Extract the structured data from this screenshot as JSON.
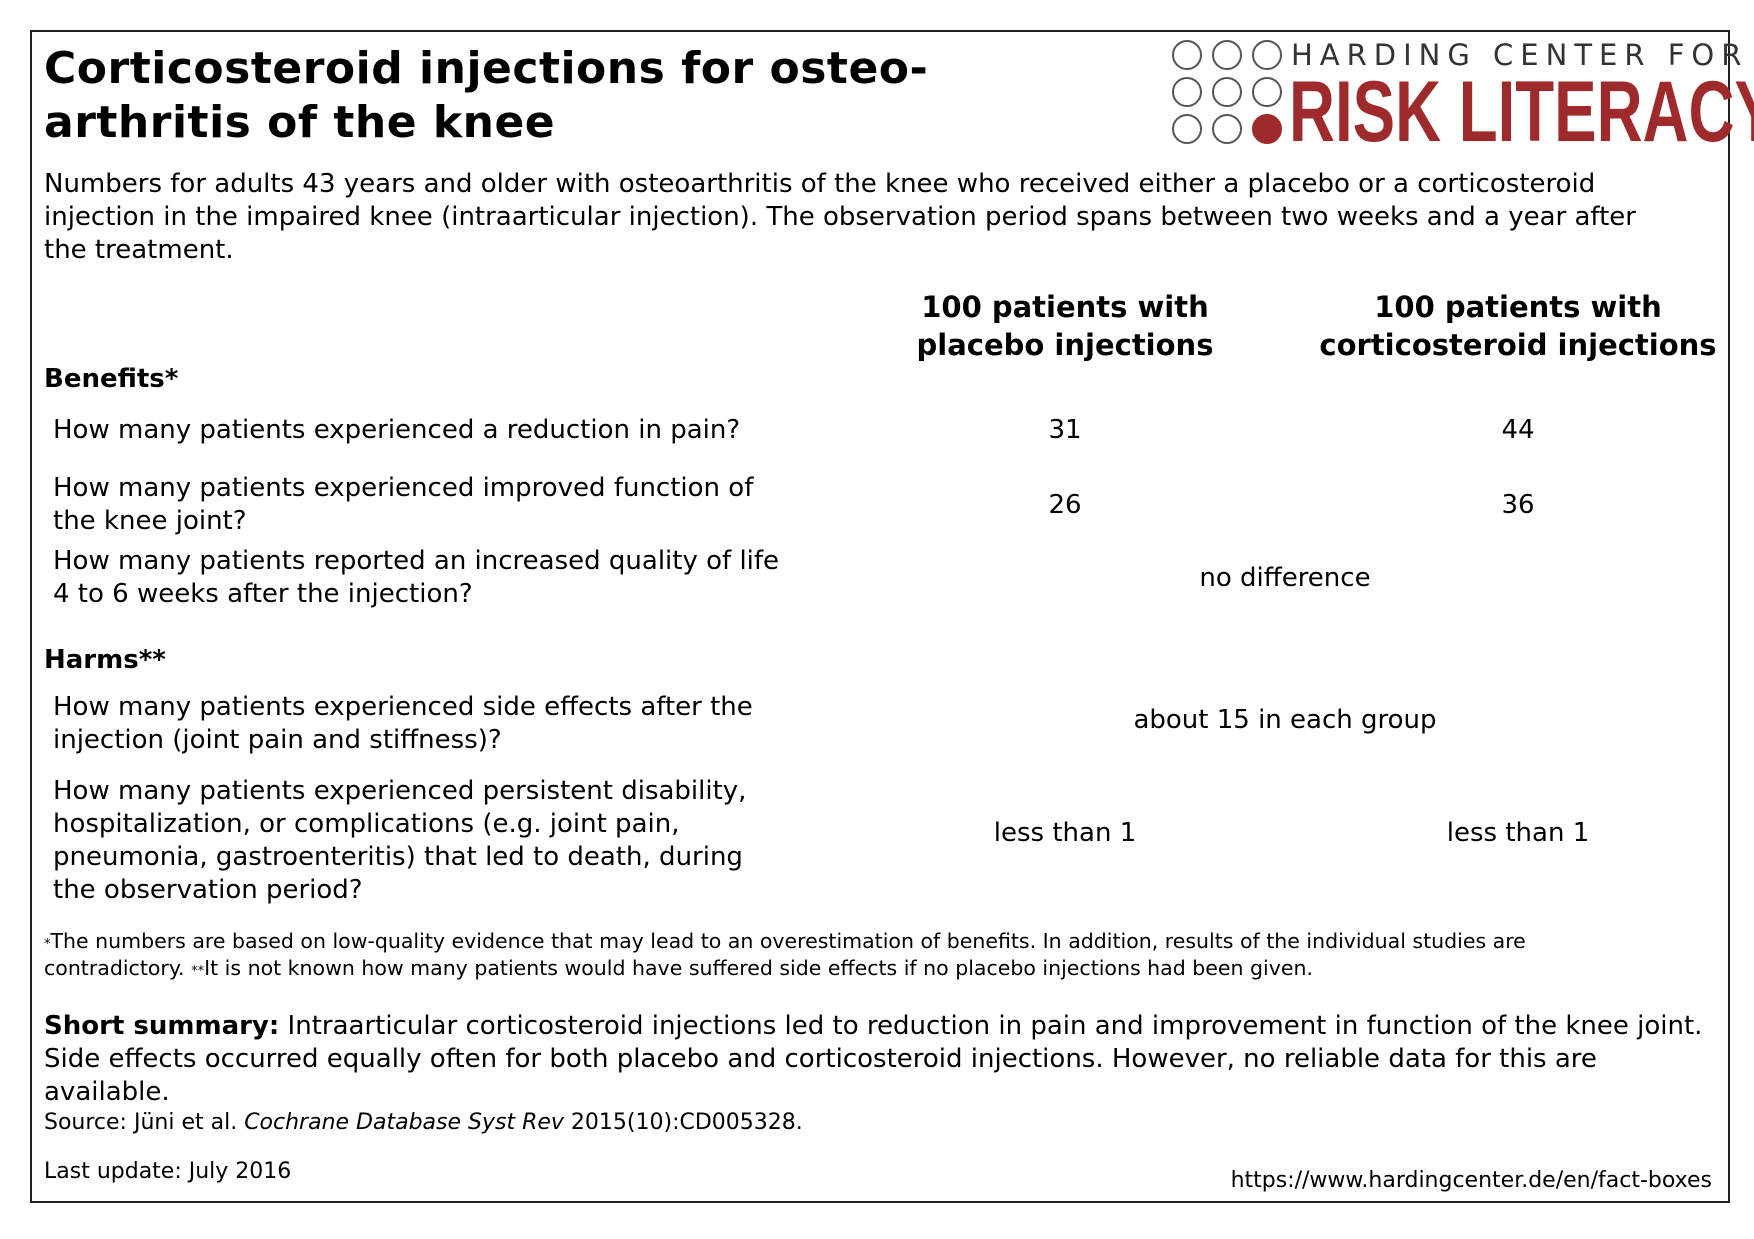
{
  "title": {
    "line1": "Corticosteroid injections for osteo-",
    "line2": "arthritis of the knee"
  },
  "logo": {
    "top_text": "HARDING CENTER FOR",
    "main_text": "RISK LITERACY",
    "brand_color": "#9e2a2b",
    "icon": "nine-dot-grid-logo"
  },
  "intro": "Numbers for adults 43 years and older with osteoarthritis of the knee who received either a placebo or a corticosteroid injection in the impaired knee (intraarticular injection). The observation period spans between two weeks and a year after the treatment.",
  "columns": {
    "placebo": {
      "line1": "100 patients with",
      "line2": "placebo injections"
    },
    "corticosteroid": {
      "line1": "100 patients with",
      "line2": "corticosteroid injections"
    }
  },
  "benefits": {
    "heading": "Benefits*",
    "rows": [
      {
        "question": [
          "How many patients experienced a reduction in pain?"
        ],
        "placebo": "31",
        "corticosteroid": "44"
      },
      {
        "question": [
          "How many patients experienced improved function of",
          "the knee joint?"
        ],
        "placebo": "26",
        "corticosteroid": "36"
      },
      {
        "question": [
          "How many patients reported an increased quality of life",
          "4 to 6 weeks after the injection?"
        ],
        "combined": "no difference"
      }
    ]
  },
  "harms": {
    "heading": "Harms**",
    "rows": [
      {
        "question": [
          "How many patients experienced side effects after the",
          "injection (joint pain and stiffness)?"
        ],
        "combined": "about 15 in each group"
      },
      {
        "question": [
          "How many patients experienced persistent disability,",
          "hospitalization, or complications (e.g. joint pain,",
          "pneumonia, gastroenteritis) that led to death, during",
          "the observation period?"
        ],
        "placebo": "less than 1",
        "corticosteroid": "less than 1"
      }
    ]
  },
  "footnotes": {
    "mark1": "*",
    "text1a": "The numbers are based on low-quality evidence that may lead to an overestimation of benefits. In addition, results of the individual studies are",
    "text1b": "contradictory. ",
    "mark2": "**",
    "text2": "It is not known how many patients would have suffered side effects if no placebo injections had been given."
  },
  "summary": {
    "label": "Short summary:",
    "text": " Intraarticular corticosteroid injections led to reduction in pain and improvement in function of the knee joint. Side effects occurred equally often for both placebo and corticosteroid injections. However, no reliable data for this are available."
  },
  "source": {
    "prefix": "Source: Jüni et al. ",
    "journal": "Cochrane Database Syst Rev",
    "suffix": " 2015(10):CD005328."
  },
  "last_update": "Last update: July 2016",
  "url": "https://www.hardingcenter.de/en/fact-boxes"
}
